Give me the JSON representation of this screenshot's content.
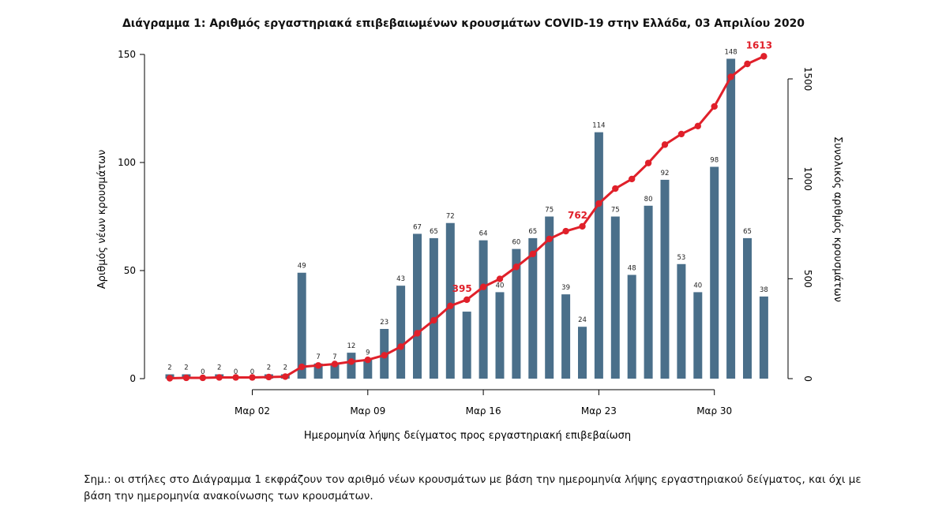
{
  "title": "Διάγραμμα 1: Αριθμός εργαστηριακά επιβεβαιωμένων κρουσμάτων COVID-19 στην Ελλάδα, 03 Απριλίου 2020",
  "note": "Σημ.: οι στήλες στο Διάγραμμα 1 εκφράζουν τον αριθμό νέων κρουσμάτων με βάση την ημερομηνία λήψης εργαστηριακού δείγματος, και όχι με βάση την ημερομηνία ανακοίνωσης των κρουσμάτων.",
  "chart_data": {
    "type": "bar",
    "title": "Διάγραμμα 1: Αριθμός εργαστηριακά επιβεβαιωμένων κρουσμάτων COVID-19 στην Ελλάδα, 03 Απριλίου 2020",
    "xlabel": "Ημερομηνία λήψης δείγματος προς εργαστηριακή επιβεβαίωση",
    "ylabel": "Αριθμός νέων κρουσμάτων",
    "y2label": "Συνολικός αριθμός κρουσμάτων",
    "ylim": [
      0,
      150
    ],
    "y2lim": [
      0,
      1613
    ],
    "yticks": [
      0,
      50,
      100,
      150
    ],
    "y2ticks": [
      0,
      500,
      1000,
      1500
    ],
    "x_tick_labels": [
      "Μαρ 02",
      "Μαρ 09",
      "Μαρ 16",
      "Μαρ 23",
      "Μαρ 30"
    ],
    "x_tick_index": [
      5,
      12,
      19,
      26,
      33
    ],
    "bar_color": "#4a6f8a",
    "line_color": "#e0202a",
    "series": [
      {
        "name": "Νέα κρούσματα",
        "type": "bar",
        "values": [
          2,
          2,
          0,
          2,
          0,
          0,
          2,
          2,
          49,
          7,
          7,
          12,
          9,
          23,
          43,
          67,
          65,
          72,
          31,
          64,
          40,
          60,
          65,
          75,
          39,
          24,
          114,
          75,
          48,
          80,
          92,
          53,
          40,
          98,
          148,
          65,
          38
        ],
        "labels": [
          "2",
          "2",
          "0",
          "2",
          "0",
          "0",
          "2",
          "2",
          "49",
          "7",
          "7",
          "12",
          "9",
          "23",
          "43",
          "67",
          "65",
          "72",
          "",
          "64",
          "40",
          "60",
          "65",
          "75",
          "39",
          "24",
          "114",
          "75",
          "48",
          "80",
          "92",
          "53",
          "40",
          "98",
          "148",
          "65",
          "38"
        ]
      },
      {
        "name": "Συνολικός αριθμός κρουσμάτων",
        "type": "line",
        "axis": "right",
        "values": [
          2,
          4,
          4,
          6,
          6,
          6,
          8,
          10,
          59,
          66,
          73,
          85,
          94,
          117,
          160,
          227,
          292,
          364,
          395,
          459,
          499,
          559,
          624,
          699,
          738,
          762,
          876,
          951,
          999,
          1079,
          1171,
          1224,
          1264,
          1362,
          1510,
          1575,
          1613
        ],
        "highlight_labels": [
          {
            "index": 18,
            "label": "395"
          },
          {
            "index": 25,
            "label": "762"
          },
          {
            "index": 36,
            "label": "1613"
          }
        ]
      }
    ]
  }
}
